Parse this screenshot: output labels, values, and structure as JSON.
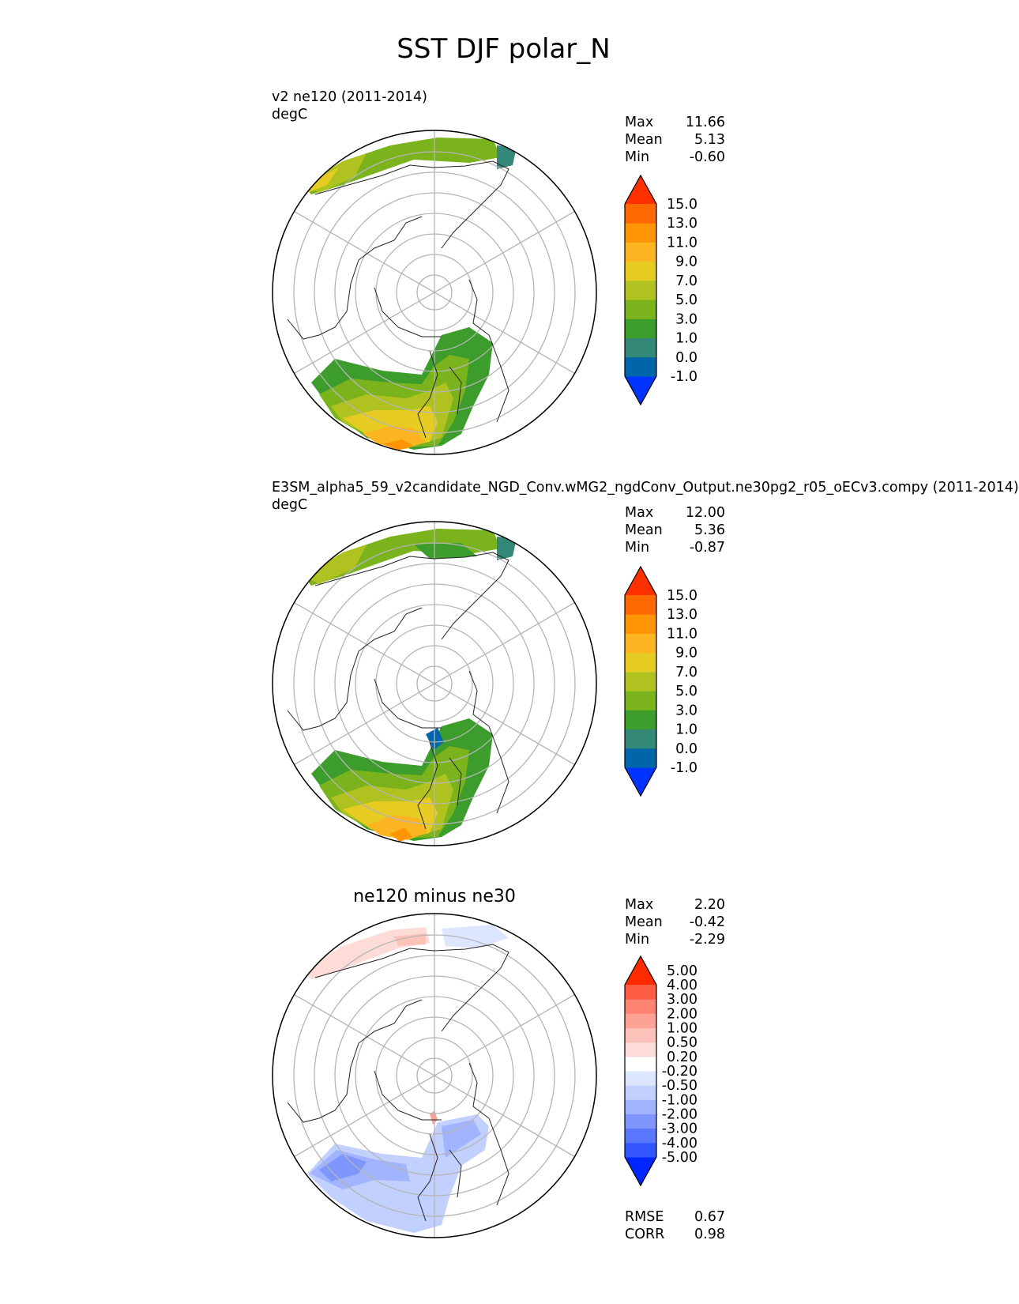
{
  "page": {
    "title": "SST DJF polar_N"
  },
  "panels": [
    {
      "label_line1": "v2 ne120 (2011-2014)",
      "label_line2": "degC",
      "stats": {
        "max_label": "Max",
        "max": "11.66",
        "mean_label": "Mean",
        "mean": "5.13",
        "min_label": "Min",
        "min": "-0.60"
      }
    },
    {
      "label_line1": "E3SM_alpha5_59_v2candidate_NGD_Conv.wMG2_ngdConv_Output.ne30pg2_r05_oECv3.compy (2011-2014)",
      "label_line2": "degC",
      "stats": {
        "max_label": "Max",
        "max": "12.00",
        "mean_label": "Mean",
        "mean": "5.36",
        "min_label": "Min",
        "min": "-0.87"
      }
    },
    {
      "title": "ne120 minus ne30",
      "stats": {
        "max_label": "Max",
        "max": "2.20",
        "mean_label": "Mean",
        "mean": "-0.42",
        "min_label": "Min",
        "min": "-2.29"
      },
      "rmse_label": "RMSE",
      "rmse": "0.67",
      "corr_label": "CORR",
      "corr": "0.98"
    }
  ],
  "colors": {
    "model_scale": [
      "#0033ff",
      "#0066aa",
      "#338877",
      "#3c9c2c",
      "#7ab31c",
      "#b0c21f",
      "#e6cc22",
      "#fcb521",
      "#ff9505",
      "#ff6a00",
      "#ff3000"
    ],
    "diff_scale": [
      "#0026ff",
      "#3355ff",
      "#5a77ff",
      "#7f95ff",
      "#a2b4ff",
      "#c2d0ff",
      "#dde6ff",
      "#ffffff",
      "#fddbd7",
      "#fcc2b9",
      "#fca393",
      "#fd8470",
      "#fd5c45",
      "#ff2a00"
    ],
    "land_outline": "#222222",
    "grid": "#b5b5b5"
  },
  "chart_data": [
    {
      "type": "heatmap",
      "projection": "north polar stereographic",
      "title": "v2 ne120 (2011-2014)",
      "units": "degC",
      "colorbar_levels": [
        -1.0,
        0.0,
        1.0,
        3.0,
        5.0,
        7.0,
        9.0,
        11.0,
        13.0,
        15.0
      ],
      "colorbar_tick_labels": [
        "-1.0",
        "0.0",
        "1.0",
        "3.0",
        "5.0",
        "7.0",
        "9.0",
        "11.0",
        "13.0",
        "15.0"
      ],
      "extend": "both",
      "max": 11.66,
      "mean": 5.13,
      "min": -0.6
    },
    {
      "type": "heatmap",
      "projection": "north polar stereographic",
      "title": "E3SM_alpha5_59_v2candidate_NGD_Conv.wMG2_ngdConv_Output.ne30pg2_r05_oECv3.compy (2011-2014)",
      "units": "degC",
      "colorbar_levels": [
        -1.0,
        0.0,
        1.0,
        3.0,
        5.0,
        7.0,
        9.0,
        11.0,
        13.0,
        15.0
      ],
      "colorbar_tick_labels": [
        "-1.0",
        "0.0",
        "1.0",
        "3.0",
        "5.0",
        "7.0",
        "9.0",
        "11.0",
        "13.0",
        "15.0"
      ],
      "extend": "both",
      "max": 12.0,
      "mean": 5.36,
      "min": -0.87
    },
    {
      "type": "heatmap",
      "projection": "north polar stereographic",
      "title": "ne120 minus ne30",
      "colorbar_levels": [
        -5.0,
        -4.0,
        -3.0,
        -2.0,
        -1.0,
        -0.5,
        -0.2,
        0.2,
        0.5,
        1.0,
        2.0,
        3.0,
        4.0,
        5.0
      ],
      "colorbar_tick_labels": [
        "-5.00",
        "-4.00",
        "-3.00",
        "-2.00",
        "-1.00",
        "-0.50",
        "-0.20",
        "0.20",
        "0.50",
        "1.00",
        "2.00",
        "3.00",
        "4.00",
        "5.00"
      ],
      "extend": "both",
      "max": 2.2,
      "mean": -0.42,
      "min": -2.29,
      "rmse": 0.67,
      "corr": 0.98
    }
  ]
}
